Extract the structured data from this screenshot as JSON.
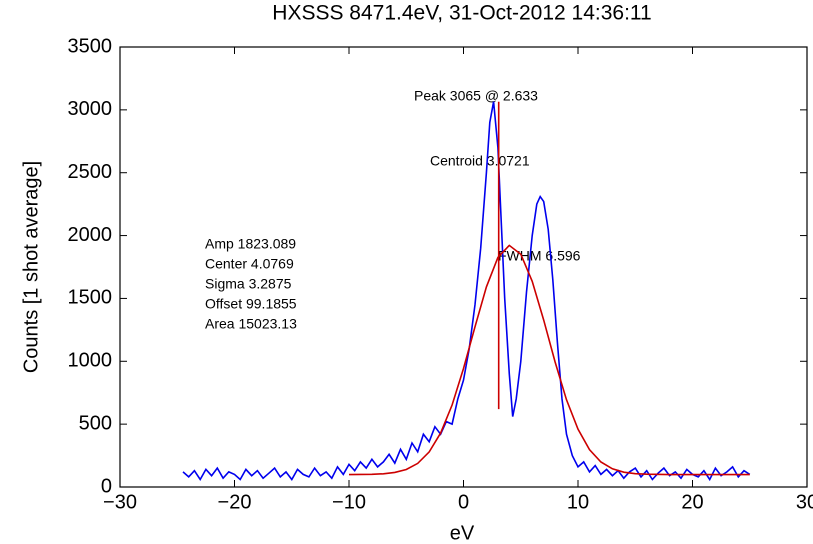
{
  "chart_data": {
    "type": "line",
    "title": "HXSSS  8471.4eV, 31-Oct-2012 14:36:11",
    "x_label": "eV",
    "y_label": "Counts [1 shot average]",
    "xlim": [
      -30,
      30
    ],
    "xticks": [
      {
        "value": -30,
        "label": "−30"
      },
      {
        "value": -20,
        "label": "−20"
      },
      {
        "value": -10,
        "label": "−10"
      },
      0,
      10,
      20,
      30
    ],
    "ylim": [
      0,
      3500
    ],
    "yticks": [
      0,
      500,
      1000,
      1500,
      2000,
      2500,
      3000,
      3500
    ],
    "series": [
      {
        "color": "#0000ee",
        "x": [
          -24.5,
          -24,
          -23.5,
          -23,
          -22.5,
          -22,
          -21.5,
          -21,
          -20.5,
          -20,
          -19.5,
          -19,
          -18.5,
          -18,
          -17.5,
          -17,
          -16.5,
          -16,
          -15.5,
          -15,
          -14.5,
          -14,
          -13.5,
          -13,
          -12.5,
          -12,
          -11.5,
          -11,
          -10.5,
          -10,
          -9.5,
          -9,
          -8.5,
          -8,
          -7.5,
          -7,
          -6.5,
          -6,
          -5.5,
          -5,
          -4.5,
          -4,
          -3.5,
          -3,
          -2.5,
          -2,
          -1.5,
          -1,
          -0.5,
          0,
          0.5,
          1,
          1.5,
          2,
          2.3,
          2.633,
          3,
          3.3,
          3.6,
          4,
          4.3,
          4.6,
          5,
          5.5,
          6,
          6.4,
          6.7,
          7,
          7.4,
          7.8,
          8.2,
          8.6,
          9,
          9.5,
          10,
          10.5,
          11,
          11.5,
          12,
          12.5,
          13,
          13.5,
          14,
          14.5,
          15,
          15.5,
          16,
          16.5,
          17,
          17.5,
          18,
          18.5,
          19,
          19.5,
          20,
          20.5,
          21,
          21.5,
          22,
          22.5,
          23,
          23.5,
          24,
          24.5,
          25
        ],
        "values": [
          120,
          80,
          130,
          60,
          140,
          90,
          150,
          70,
          120,
          100,
          60,
          140,
          90,
          130,
          70,
          110,
          150,
          80,
          120,
          60,
          140,
          100,
          80,
          150,
          90,
          120,
          70,
          160,
          100,
          180,
          130,
          200,
          150,
          220,
          160,
          200,
          260,
          190,
          300,
          220,
          350,
          280,
          420,
          360,
          480,
          420,
          520,
          500,
          700,
          850,
          1100,
          1450,
          1900,
          2500,
          2900,
          3065,
          2700,
          2100,
          1500,
          900,
          560,
          700,
          1000,
          1550,
          2000,
          2250,
          2310,
          2270,
          2050,
          1650,
          1150,
          700,
          420,
          250,
          160,
          200,
          120,
          170,
          100,
          140,
          90,
          130,
          70,
          120,
          150,
          80,
          130,
          60,
          110,
          150,
          90,
          120,
          70,
          140,
          100,
          80,
          130,
          60,
          150,
          90,
          120,
          160,
          80,
          130,
          100
        ]
      },
      {
        "color": "#cc0000",
        "x": [
          -10,
          -8,
          -7,
          -6,
          -5,
          -4,
          -3,
          -2,
          -1,
          0,
          1,
          2,
          3,
          4,
          5,
          6,
          7,
          8,
          9,
          10,
          11,
          12,
          13,
          14,
          15,
          16,
          18,
          20,
          22,
          25
        ],
        "values": [
          99,
          101,
          105,
          116,
          139,
          188,
          279,
          429,
          652,
          943,
          1274,
          1592,
          1826,
          1922,
          1852,
          1636,
          1328,
          994,
          694,
          460,
          297,
          199,
          145,
          118,
          106,
          102,
          99,
          99,
          99,
          99
        ]
      },
      {
        "color": "#cc0000",
        "x": [
          3.0721,
          3.0721
        ],
        "values": [
          620,
          3065
        ]
      }
    ],
    "annotations": [
      "Peak 3065 @ 2.633",
      "Centroid  3.0721",
      "FWHM 6.596",
      "Amp  1823.089",
      "Center  4.0769",
      "Sigma  3.2875",
      "Offset  99.1855",
      "Area  15023.13"
    ]
  }
}
